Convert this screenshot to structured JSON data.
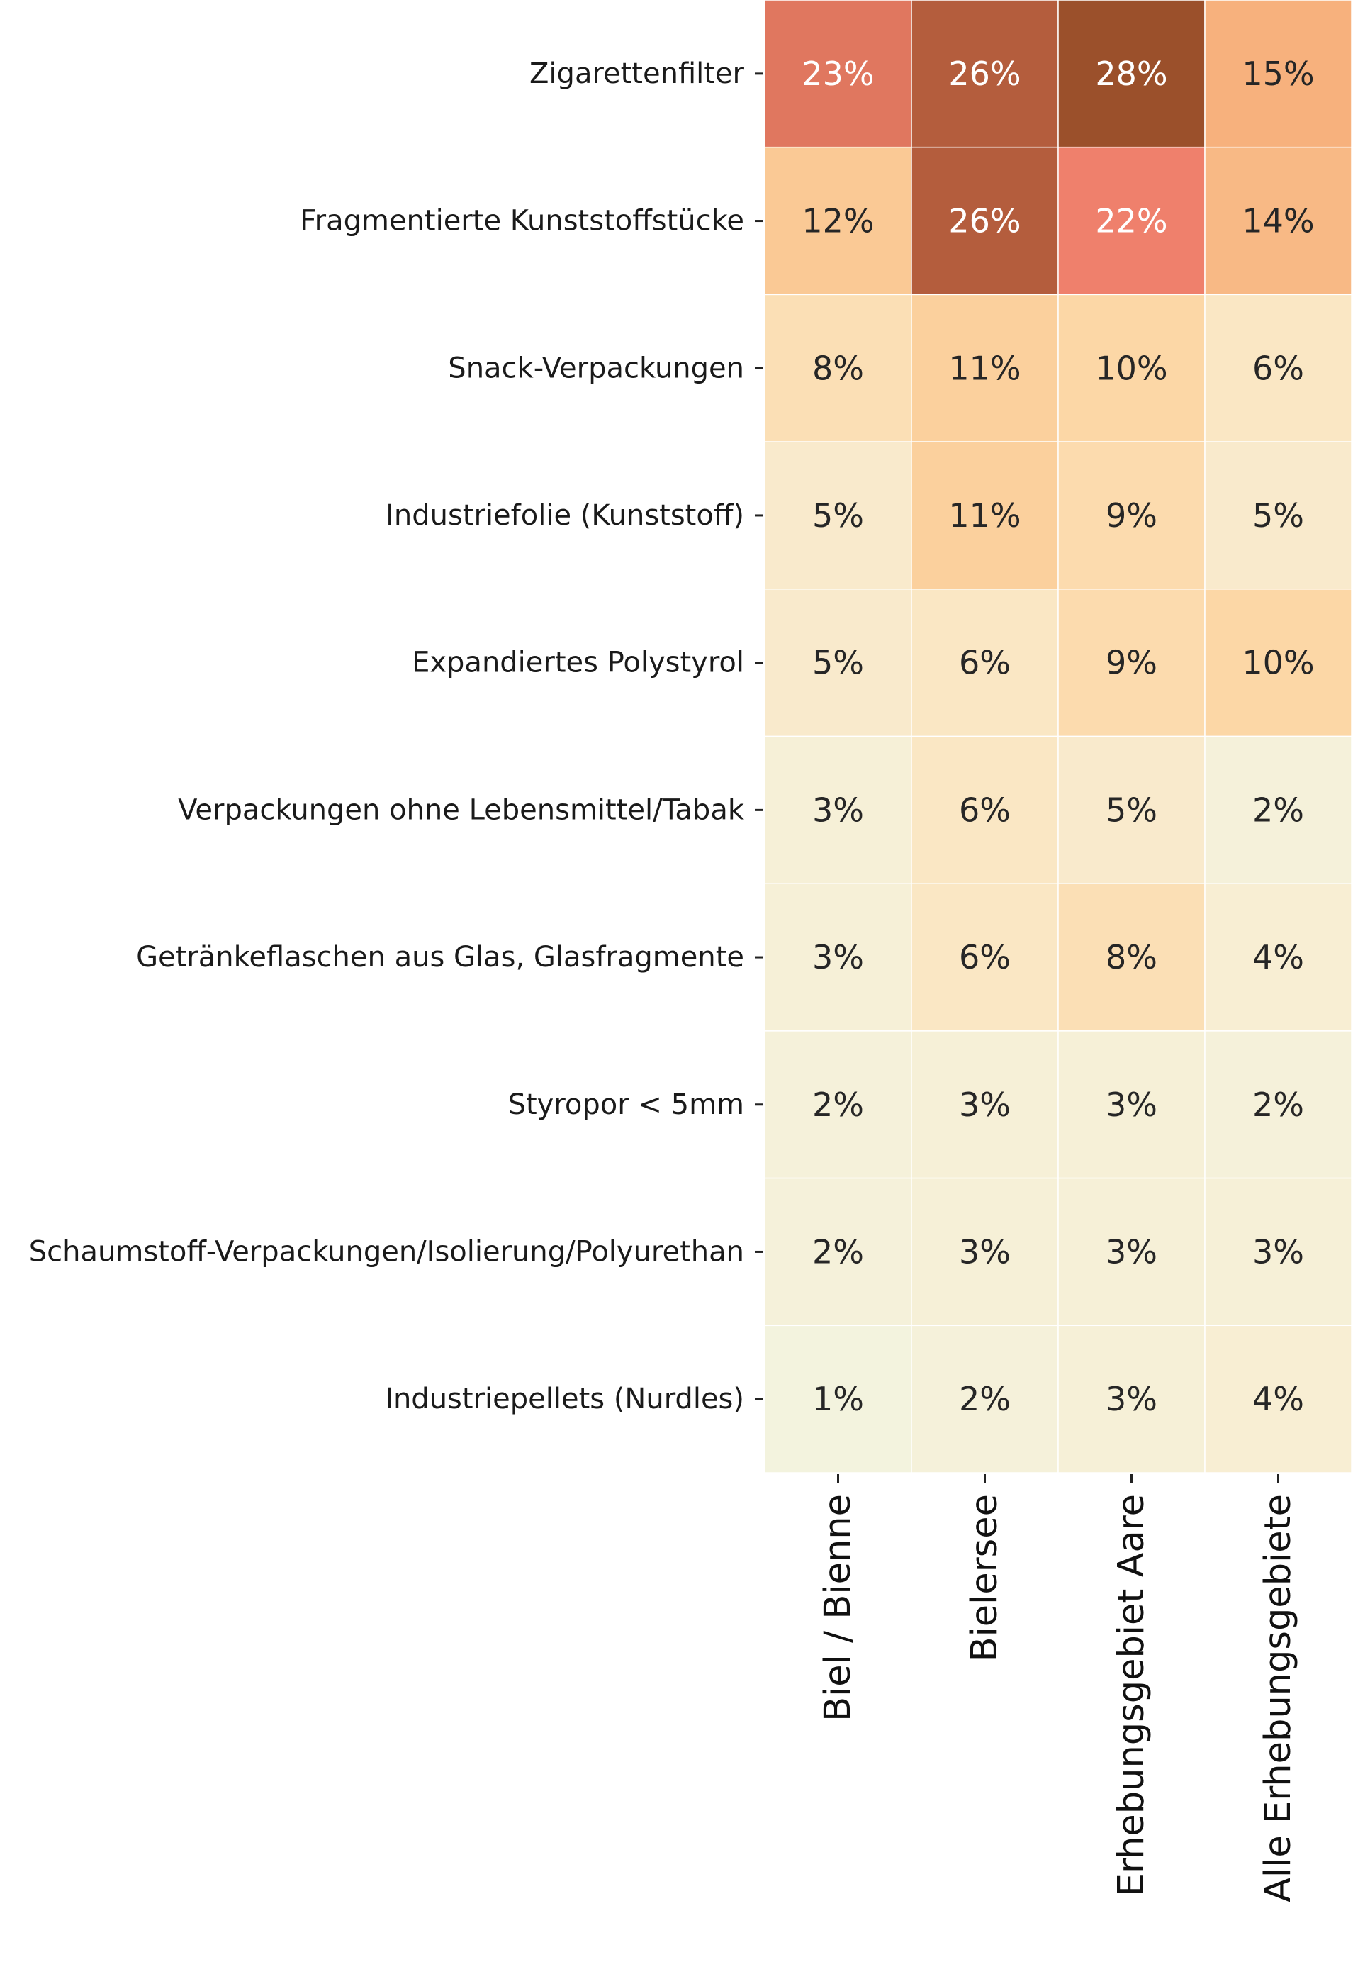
{
  "chart_data": {
    "type": "heatmap",
    "rows": [
      "Zigarettenfilter",
      "Fragmentierte Kunststoffstücke",
      "Snack-Verpackungen",
      "Industriefolie (Kunststoff)",
      "Expandiertes Polystyrol",
      "Verpackungen ohne Lebensmittel/Tabak",
      "Getränkeflaschen aus Glas, Glasfragmente",
      "Styropor < 5mm",
      "Schaumstoff-Verpackungen/Isolierung/Polyurethan",
      "Industriepellets (Nurdles)"
    ],
    "columns": [
      "Biel / Bienne",
      "Bielersee",
      "Erhebungsgebiet Aare",
      "Alle Erhebungsgebiete"
    ],
    "values": [
      [
        23,
        26,
        28,
        15
      ],
      [
        12,
        26,
        22,
        14
      ],
      [
        8,
        11,
        10,
        6
      ],
      [
        5,
        11,
        9,
        5
      ],
      [
        5,
        6,
        9,
        10
      ],
      [
        3,
        6,
        5,
        2
      ],
      [
        3,
        6,
        8,
        4
      ],
      [
        2,
        3,
        3,
        2
      ],
      [
        2,
        3,
        3,
        3
      ],
      [
        1,
        2,
        3,
        4
      ]
    ],
    "labels": [
      [
        "23%",
        "26%",
        "28%",
        "15%"
      ],
      [
        "12%",
        "26%",
        "22%",
        "14%"
      ],
      [
        "8%",
        "11%",
        "10%",
        "6%"
      ],
      [
        "5%",
        "11%",
        "9%",
        "5%"
      ],
      [
        "5%",
        "6%",
        "9%",
        "10%"
      ],
      [
        "3%",
        "6%",
        "5%",
        "2%"
      ],
      [
        "3%",
        "6%",
        "8%",
        "4%"
      ],
      [
        "2%",
        "3%",
        "3%",
        "2%"
      ],
      [
        "2%",
        "3%",
        "3%",
        "3%"
      ],
      [
        "1%",
        "2%",
        "3%",
        "4%"
      ]
    ],
    "unit": "%",
    "colorbar": false,
    "colors": {
      "scale": [
        "#f3f3de",
        "#f8eed3",
        "#fbe3bd",
        "#fcd7a6",
        "#f9c28c",
        "#f6a876",
        "#f4856a",
        "#ef806c",
        "#c16446",
        "#9b502b"
      ],
      "text_dark": "#262626",
      "text_light": "#ffffff",
      "cell_border": "#ffffff"
    }
  }
}
